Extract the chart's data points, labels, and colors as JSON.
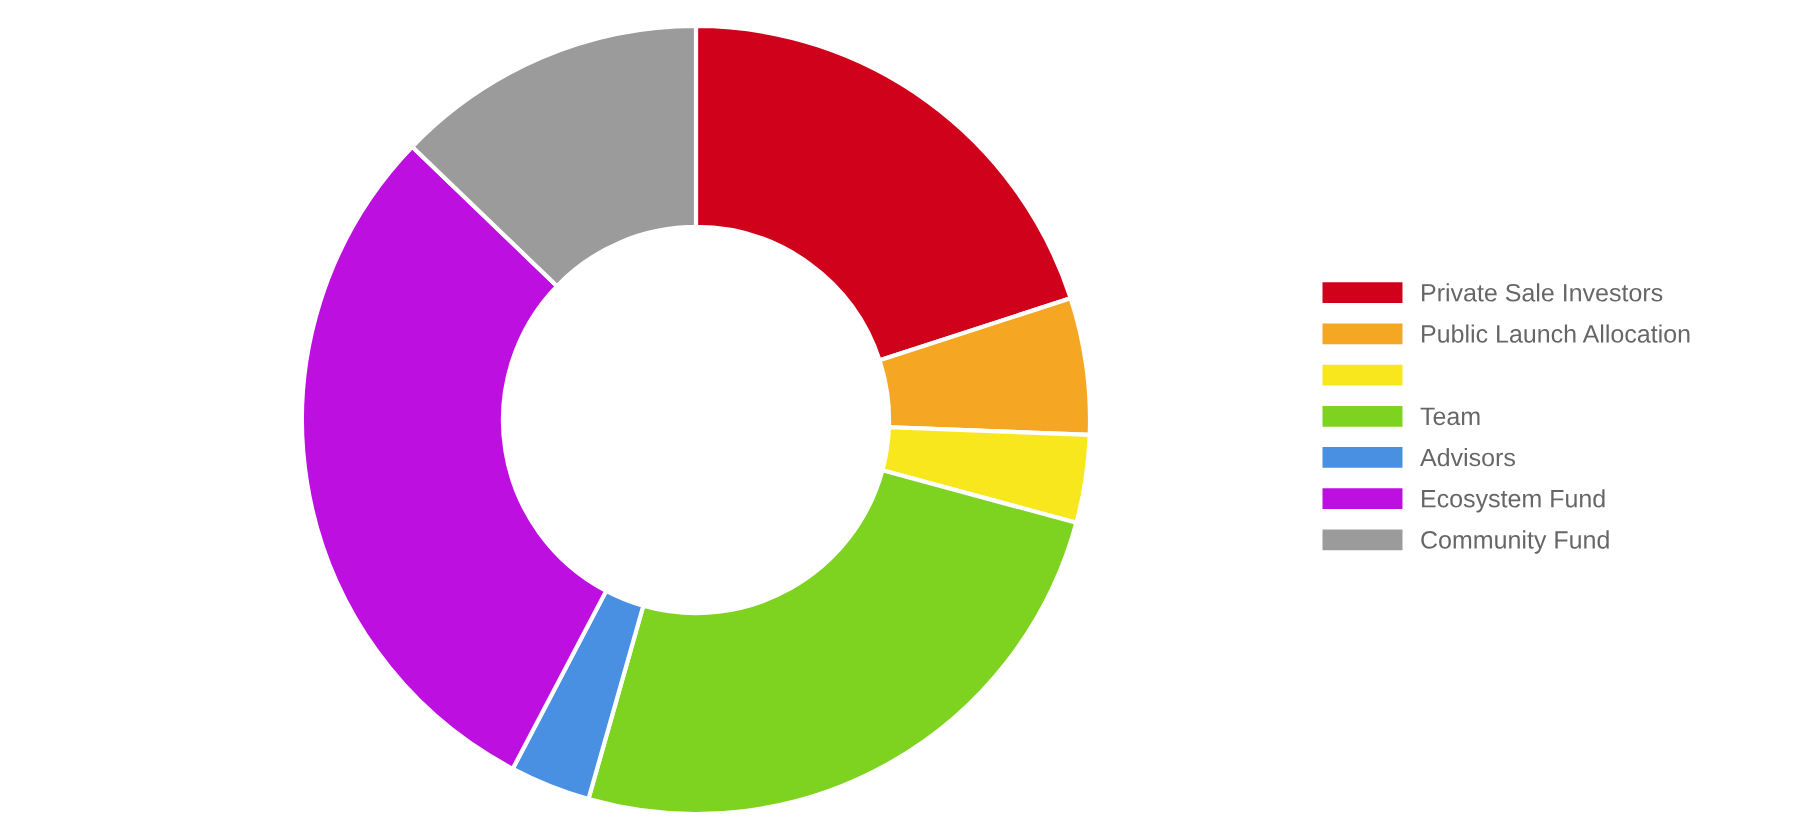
{
  "chart_data": {
    "type": "donut",
    "categories": [
      "Private Sale Investors",
      "Public Launch Allocation",
      null,
      "Team",
      "Advisors",
      "Ecosystem Fund",
      "Community Fund"
    ],
    "values": [
      20,
      5.6,
      3.6,
      25.2,
      3.3,
      29.5,
      12.8
    ],
    "colors": [
      "#d0021b",
      "#f5a623",
      "#f8e71c",
      "#7ed321",
      "#4a90e2",
      "#bd10e0",
      "#9b9b9b"
    ],
    "legend": "right"
  }
}
